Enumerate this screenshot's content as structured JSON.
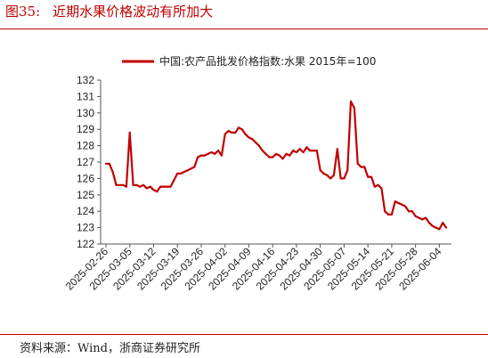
{
  "header": {
    "figure_number": "图35:",
    "title": "近期水果价格波动有所加大"
  },
  "footer": {
    "source": "资料来源：Wind，浙商证券研究所"
  },
  "chart_data": {
    "type": "line",
    "title": "",
    "xlabel": "",
    "ylabel": "",
    "ylim": [
      122,
      132
    ],
    "yticks": [
      122,
      123,
      124,
      125,
      126,
      127,
      128,
      129,
      130,
      131,
      132
    ],
    "grid": false,
    "legend_position": "top-center",
    "x_tick_labels": [
      "2025-02-26",
      "2025-03-05",
      "2025-03-12",
      "2025-03-19",
      "2025-03-26",
      "2025-04-02",
      "2025-04-09",
      "2025-04-16",
      "2025-04-23",
      "2025-04-30",
      "2025-05-07",
      "2025-05-14",
      "2025-05-21",
      "2025-05-28",
      "2025-06-04"
    ],
    "series": [
      {
        "name": "中国:农产品批发价格指数:水果 2015年=100",
        "color": "#c00000",
        "x": [
          "2025-02-26",
          "2025-02-27",
          "2025-02-28",
          "2025-03-01",
          "2025-03-02",
          "2025-03-03",
          "2025-03-04",
          "2025-03-05",
          "2025-03-06",
          "2025-03-07",
          "2025-03-08",
          "2025-03-09",
          "2025-03-10",
          "2025-03-11",
          "2025-03-12",
          "2025-03-13",
          "2025-03-14",
          "2025-03-15",
          "2025-03-16",
          "2025-03-17",
          "2025-03-18",
          "2025-03-19",
          "2025-03-20",
          "2025-03-21",
          "2025-03-22",
          "2025-03-23",
          "2025-03-24",
          "2025-03-25",
          "2025-03-26",
          "2025-03-27",
          "2025-03-28",
          "2025-03-29",
          "2025-03-30",
          "2025-03-31",
          "2025-04-01",
          "2025-04-02",
          "2025-04-03",
          "2025-04-04",
          "2025-04-05",
          "2025-04-06",
          "2025-04-07",
          "2025-04-08",
          "2025-04-09",
          "2025-04-10",
          "2025-04-11",
          "2025-04-12",
          "2025-04-13",
          "2025-04-14",
          "2025-04-15",
          "2025-04-16",
          "2025-04-17",
          "2025-04-18",
          "2025-04-19",
          "2025-04-20",
          "2025-04-21",
          "2025-04-22",
          "2025-04-23",
          "2025-04-24",
          "2025-04-25",
          "2025-04-26",
          "2025-04-27",
          "2025-04-28",
          "2025-04-29",
          "2025-04-30",
          "2025-05-01",
          "2025-05-02",
          "2025-05-03",
          "2025-05-04",
          "2025-05-05",
          "2025-05-06",
          "2025-05-07",
          "2025-05-08",
          "2025-05-09",
          "2025-05-10",
          "2025-05-11",
          "2025-05-12",
          "2025-05-13",
          "2025-05-14",
          "2025-05-15",
          "2025-05-16",
          "2025-05-17",
          "2025-05-18",
          "2025-05-19",
          "2025-05-20",
          "2025-05-21",
          "2025-05-22",
          "2025-05-23",
          "2025-05-24",
          "2025-05-25",
          "2025-05-26",
          "2025-05-27",
          "2025-05-28",
          "2025-05-29",
          "2025-05-30",
          "2025-05-31",
          "2025-06-01",
          "2025-06-02",
          "2025-06-03",
          "2025-06-04",
          "2025-06-05",
          "2025-06-06"
        ],
        "values": [
          126.9,
          126.9,
          126.4,
          125.6,
          125.6,
          125.6,
          125.5,
          128.8,
          125.6,
          125.6,
          125.5,
          125.6,
          125.4,
          125.5,
          125.3,
          125.2,
          125.5,
          125.5,
          125.5,
          125.5,
          125.9,
          126.3,
          126.3,
          126.4,
          126.5,
          126.6,
          126.7,
          127.3,
          127.4,
          127.4,
          127.5,
          127.6,
          127.5,
          127.7,
          127.4,
          128.7,
          128.9,
          128.8,
          128.8,
          129.1,
          129.0,
          128.7,
          128.5,
          128.4,
          128.2,
          128.0,
          127.7,
          127.5,
          127.3,
          127.3,
          127.5,
          127.4,
          127.2,
          127.5,
          127.4,
          127.7,
          127.6,
          127.8,
          127.6,
          127.9,
          127.7,
          127.7,
          127.7,
          126.5,
          126.3,
          126.2,
          126.0,
          126.2,
          127.8,
          126.0,
          126.0,
          126.5,
          130.7,
          130.3,
          126.9,
          126.7,
          126.7,
          126.1,
          126.1,
          125.5,
          125.6,
          125.4,
          124.0,
          123.8,
          123.8,
          124.6,
          124.5,
          124.4,
          124.3,
          124.0,
          124.0,
          123.7,
          123.6,
          123.5,
          123.6,
          123.3,
          123.1,
          123.0,
          122.9,
          123.3,
          123.0
        ]
      }
    ]
  }
}
